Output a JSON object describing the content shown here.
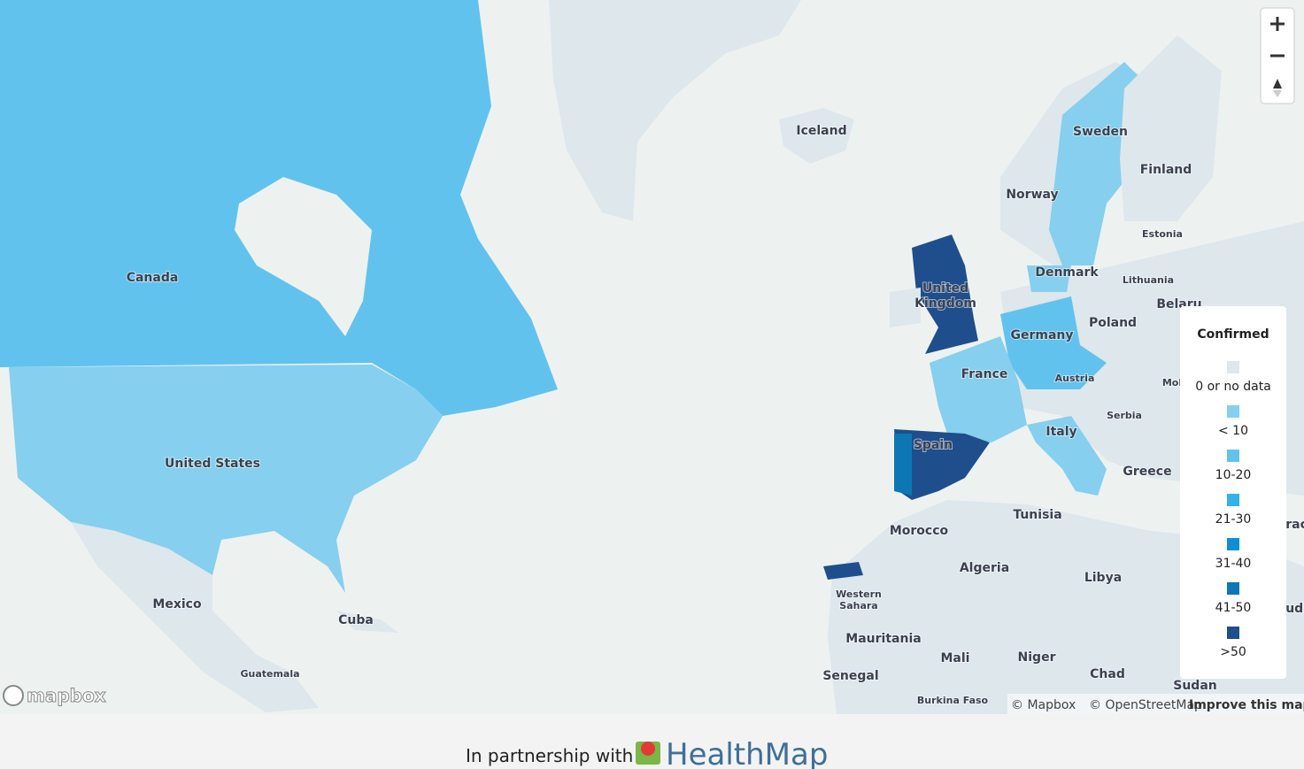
{
  "map": {
    "labels": {
      "canada": "Canada",
      "united_states": "United States",
      "mexico": "Mexico",
      "cuba": "Cuba",
      "guatemala": "Guatemala",
      "iceland": "Iceland",
      "sweden": "Sweden",
      "finland": "Finland",
      "norway": "Norway",
      "estonia": "Estonia",
      "denmark": "Denmark",
      "lithuania": "Lithuania",
      "belarus": "Belaru",
      "united_kingdom_1": "United",
      "united_kingdom_2": "Kingdom",
      "poland": "Poland",
      "germany": "Germany",
      "france": "France",
      "austria": "Austria",
      "moldova": "Mol",
      "serbia": "Serbia",
      "italy": "Italy",
      "spain": "Spain",
      "greece": "Greece",
      "iraq": "Irac",
      "tunisia": "Tunisia",
      "morocco": "Morocco",
      "algeria": "Algeria",
      "libya": "Libya",
      "western_sahara_1": "Western",
      "western_sahara_2": "Sahara",
      "mauritania": "Mauritania",
      "mali": "Mali",
      "niger": "Niger",
      "chad": "Chad",
      "senegal": "Senegal",
      "burkina_faso": "Burkina Faso",
      "sudan": "Sudan",
      "saudi": "Iudi"
    },
    "legend": {
      "title": "Confirmed",
      "items": [
        "0 or no data",
        "< 10",
        "10-20",
        "21-30",
        "31-40",
        "41-50",
        ">50"
      ]
    },
    "logo": "mapbox",
    "attribution": {
      "mapbox": "© Mapbox",
      "osm": "© OpenStreetMap",
      "improve": "Improve this map"
    }
  },
  "footer": {
    "text": "In partnership with",
    "brand": "HealthMap"
  }
}
